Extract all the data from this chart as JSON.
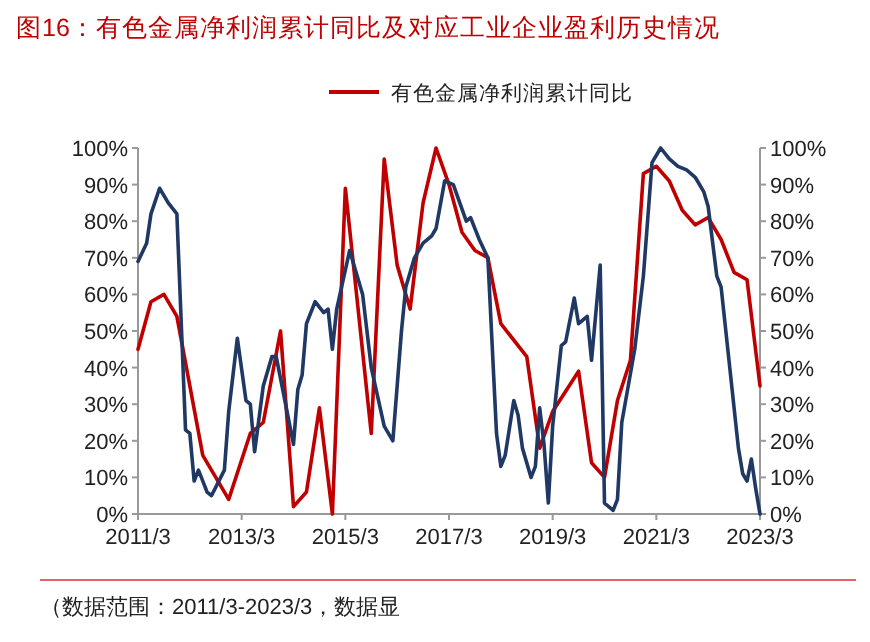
{
  "chart_data": {
    "type": "line",
    "title": "图16：有色金属净利润累计同比及对应工业企业盈利历史情况",
    "annotations": [
      "（数据范围：2011/3-2023/3，数据显"
    ],
    "legend": "top",
    "grid": false,
    "marker": "none",
    "line_style": "solid",
    "xlim": [
      "2011-03",
      "2023-03"
    ],
    "xticks": [
      {
        "value": "2011-03",
        "label": "2011/3"
      },
      {
        "value": "2013-03",
        "label": "2013/3"
      },
      {
        "value": "2015-03",
        "label": "2015/3"
      },
      {
        "value": "2017-03",
        "label": "2017/3"
      },
      {
        "value": "2019-03",
        "label": "2019/3"
      },
      {
        "value": "2021-03",
        "label": "2021/3"
      },
      {
        "value": "2023-03",
        "label": "2023/3"
      }
    ],
    "ylim": [
      0,
      100
    ],
    "yticks": [
      {
        "value": 0,
        "label": "0%"
      },
      {
        "value": 10,
        "label": "10%"
      },
      {
        "value": 20,
        "label": "20%"
      },
      {
        "value": 30,
        "label": "30%"
      },
      {
        "value": 40,
        "label": "40%"
      },
      {
        "value": 50,
        "label": "50%"
      },
      {
        "value": 60,
        "label": "60%"
      },
      {
        "value": 70,
        "label": "70%"
      },
      {
        "value": 80,
        "label": "80%"
      },
      {
        "value": 90,
        "label": "90%"
      },
      {
        "value": 100,
        "label": "100%"
      }
    ],
    "y2lim": [
      0,
      100
    ],
    "y2ticks": [
      {
        "value": 0,
        "label": "0%"
      },
      {
        "value": 10,
        "label": "10%"
      },
      {
        "value": 20,
        "label": "20%"
      },
      {
        "value": 30,
        "label": "30%"
      },
      {
        "value": 40,
        "label": "40%"
      },
      {
        "value": 50,
        "label": "50%"
      },
      {
        "value": 60,
        "label": "60%"
      },
      {
        "value": 70,
        "label": "70%"
      },
      {
        "value": 80,
        "label": "80%"
      },
      {
        "value": 90,
        "label": "90%"
      },
      {
        "value": 100,
        "label": "100%"
      }
    ],
    "series": [
      {
        "name": "有色金属净利润累计同比",
        "color": "#c00000",
        "x": [
          "2011-03",
          "2011-06",
          "2011-09",
          "2011-12",
          "2012-06",
          "2012-12",
          "2013-05",
          "2013-08",
          "2013-12",
          "2014-03",
          "2014-06",
          "2014-09",
          "2014-12",
          "2015-03",
          "2015-09",
          "2015-12",
          "2016-03",
          "2016-06",
          "2016-09",
          "2016-12",
          "2017-03",
          "2017-06",
          "2017-09",
          "2017-12",
          "2018-03",
          "2018-09",
          "2018-12",
          "2019-03",
          "2019-09",
          "2019-12",
          "2020-03",
          "2020-06",
          "2020-09",
          "2020-12",
          "2021-03",
          "2021-06",
          "2021-09",
          "2021-12",
          "2022-03",
          "2022-06",
          "2022-09",
          "2022-12",
          "2023-03"
        ],
        "values": [
          45,
          58,
          60,
          54,
          16,
          4,
          22,
          25,
          50,
          2,
          6,
          29,
          0,
          89,
          22,
          97,
          68,
          56,
          85,
          100,
          90,
          77,
          72,
          70,
          52,
          43,
          18,
          28,
          39,
          14,
          10,
          31,
          42,
          93,
          95,
          91,
          83,
          79,
          81,
          75,
          66,
          64,
          35
        ]
      },
      {
        "color": "#1f3864",
        "x": [
          "2011-03",
          "2011-05",
          "2011-06",
          "2011-08",
          "2011-10",
          "2011-12",
          "2012-02",
          "2012-03",
          "2012-04",
          "2012-05",
          "2012-07",
          "2012-08",
          "2012-11",
          "2012-12",
          "2013-02",
          "2013-04",
          "2013-05",
          "2013-06",
          "2013-08",
          "2013-10",
          "2013-11",
          "2013-12",
          "2014-03",
          "2014-04",
          "2014-05",
          "2014-06",
          "2014-08",
          "2014-10",
          "2014-11",
          "2014-12",
          "2015-01",
          "2015-04",
          "2015-07",
          "2015-09",
          "2015-12",
          "2016-02",
          "2016-04",
          "2016-05",
          "2016-07",
          "2016-09",
          "2016-11",
          "2016-12",
          "2017-02",
          "2017-04",
          "2017-07",
          "2017-08",
          "2017-10",
          "2017-12",
          "2018-02",
          "2018-03",
          "2018-04",
          "2018-06",
          "2018-07",
          "2018-08",
          "2018-10",
          "2018-11",
          "2018-12",
          "2019-01",
          "2019-02",
          "2019-03",
          "2019-05",
          "2019-06",
          "2019-08",
          "2019-09",
          "2019-11",
          "2019-12",
          "2020-02",
          "2020-03",
          "2020-05",
          "2020-06",
          "2020-07",
          "2020-10",
          "2020-12",
          "2021-02",
          "2021-04",
          "2021-06",
          "2021-08",
          "2021-10",
          "2021-12",
          "2022-02",
          "2022-03",
          "2022-05",
          "2022-06",
          "2022-10",
          "2022-11",
          "2022-12",
          "2023-01",
          "2023-02",
          "2023-03"
        ],
        "values": [
          69,
          74,
          82,
          89,
          85,
          82,
          23,
          22,
          9,
          12,
          6,
          5,
          12,
          28,
          48,
          31,
          30,
          17,
          35,
          43,
          43,
          37,
          19,
          34,
          38,
          52,
          58,
          55,
          56,
          45,
          56,
          72,
          60,
          40,
          24,
          20,
          50,
          62,
          70,
          74,
          76,
          78,
          91,
          90,
          80,
          81,
          75,
          70,
          22,
          13,
          16,
          31,
          27,
          18,
          10,
          13,
          29,
          19,
          3,
          24,
          46,
          47,
          59,
          52,
          54,
          42,
          68,
          3,
          1,
          4,
          25,
          45,
          65,
          96,
          100,
          97,
          95,
          94,
          92,
          88,
          84,
          65,
          62,
          18,
          11,
          9,
          15,
          7,
          0
        ]
      }
    ]
  }
}
